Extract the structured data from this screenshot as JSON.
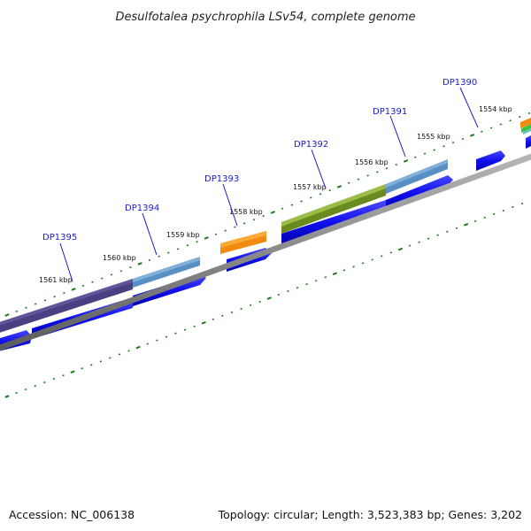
{
  "title": "Desulfotalea psychrophila LSv54, complete genome",
  "footer": {
    "accession": "Accession: NC_006138",
    "summary": "Topology: circular; Length: 3,523,383 bp; Genes: 3,202"
  },
  "colors": {
    "gene_arrow": "#1010ee",
    "backbone": "#8a8a8a",
    "tick": "#1a7a1a",
    "label": "#1a1acc"
  },
  "kbp_labels": [
    "1561 kbp",
    "1560 kbp",
    "1559 kbp",
    "1558 kbp",
    "1557 kbp",
    "1556 kbp",
    "1555 kbp",
    "1554 kbp"
  ],
  "genes": [
    {
      "label": "DP1395",
      "cog_color": "#4a3f80"
    },
    {
      "label": "DP1394",
      "cog_color": "#5a8fc4"
    },
    {
      "label": "DP1393",
      "cog_color": "#f08a10"
    },
    {
      "label": "DP1392",
      "cog_color": "#6a8a20"
    },
    {
      "label": "DP1391",
      "cog_color": "#5a8fc4"
    },
    {
      "label": "DP1390",
      "cog_color": "#f08a10"
    }
  ]
}
